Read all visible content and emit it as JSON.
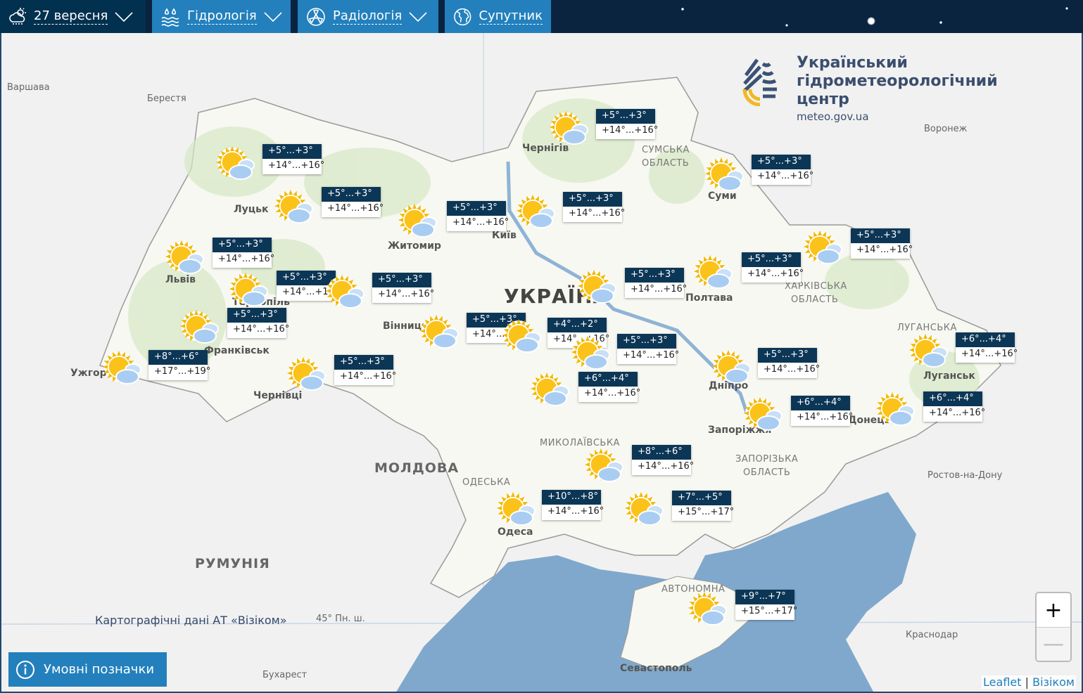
{
  "nav": {
    "tabs": [
      {
        "label": "27 вересня",
        "icon": "cloud-sun-rain-icon",
        "dropdown": true,
        "active": true
      },
      {
        "label": "Гідрологія",
        "icon": "water-drops-icon",
        "dropdown": true
      },
      {
        "label": "Радіологія",
        "icon": "radiation-icon",
        "dropdown": true
      },
      {
        "label": "Супутник",
        "icon": "globe-icon",
        "dropdown": false
      }
    ],
    "colors": {
      "active": "#02314f",
      "tab": "#2380bd",
      "bar": "#0a2440"
    }
  },
  "logo": {
    "line1": "Український",
    "line2": "гідрометеорологічний",
    "line3": "центр",
    "url": "meteo.gov.ua"
  },
  "map": {
    "places": {
      "warsaw": "Варшава",
      "brest": "Берестя",
      "voronezh": "Воронеж",
      "chernihiv": "Чернігів",
      "sumy_region": "СУМСЬКА",
      "sumy_region2": "ОБЛАСТЬ",
      "sumy": "Суми",
      "lutsk": "Луцьк",
      "zhytomyr": "Житомир",
      "kyiv": "Київ",
      "lviv": "Львів",
      "ternopil": "Тернопіль",
      "ukraine": "УКРАЇНА",
      "poltava": "Полтава",
      "kharkiv_region": "ХАРКІВСЬКА",
      "kharkiv_region2": "ОБЛАСТЬ",
      "vinnytsia": "Вінниця",
      "frankivsk": "Франківськ",
      "uzhhorod": "Ужгород",
      "chernivtsi": "Чернівці",
      "luhansk_region": "ЛУГАНСЬКА",
      "luhansk": "Луганськ",
      "dnipro": "Дніпро",
      "zaporizhzhia": "Запоріжжя",
      "donetsk": "Донецьк",
      "mykolaiv_region": "МИКОЛАЇВСЬКА",
      "moldova": "МОЛДОВА",
      "odesa_region": "ОДЕСЬКА",
      "odesa": "Одеса",
      "zaporizhzhia_region": "ЗАПОРІЗЬКА",
      "zaporizhzhia_region2": "ОБЛАСТЬ",
      "rostov": "Ростов-на-Дону",
      "romania": "РУМУНІЯ",
      "crimea": "АВТОНОМНА",
      "sevastopol": "Севастополь",
      "krasnodar": "Краснодар",
      "bucharest": "Бухарест",
      "parallel": "45° Пн. ш."
    },
    "forecasts": [
      {
        "region": "chernihiv",
        "night": "+5°...+3°",
        "day": "+14°...+16°"
      },
      {
        "region": "volyn",
        "night": "+5°...+3°",
        "day": "+14°...+16°"
      },
      {
        "region": "rivne",
        "night": "+5°...+3°",
        "day": "+14°...+16°"
      },
      {
        "region": "zhytomyr",
        "night": "+5°...+3°",
        "day": "+14°...+16°"
      },
      {
        "region": "kyiv",
        "night": "+5°...+3°",
        "day": "+14°...+16°"
      },
      {
        "region": "sumy",
        "night": "+5°...+3°",
        "day": "+14°...+16°"
      },
      {
        "region": "lviv",
        "night": "+5°...+3°",
        "day": "+14°...+16°"
      },
      {
        "region": "ternopil",
        "night": "+5°...+3°",
        "day": "+14°...+16°"
      },
      {
        "region": "khmelnytskyi",
        "night": "+5°...+3°",
        "day": "+14°...+16°"
      },
      {
        "region": "kharkiv",
        "night": "+5°...+3°",
        "day": "+14°...+16°"
      },
      {
        "region": "poltava",
        "night": "+5°...+3°",
        "day": "+14°...+16°"
      },
      {
        "region": "cherkasy",
        "night": "+5°...+3°",
        "day": "+14°...+16°"
      },
      {
        "region": "ivano-frankivsk",
        "night": "+5°...+3°",
        "day": "+14°...+16°"
      },
      {
        "region": "vinnytsia",
        "night": "+5°...+3°",
        "day": "+14°...+16°"
      },
      {
        "region": "kyiv-city",
        "night": "+4°...+2°",
        "day": "+14°...+16°"
      },
      {
        "region": "kirovohrad",
        "night": "+5°...+3°",
        "day": "+14°...+16°"
      },
      {
        "region": "zakarpattia",
        "night": "+8°...+6°",
        "day": "+17°...+19°"
      },
      {
        "region": "chernivtsi",
        "night": "+5°...+3°",
        "day": "+14°...+16°"
      },
      {
        "region": "dnipro",
        "night": "+5°...+3°",
        "day": "+14°...+16°"
      },
      {
        "region": "luhansk",
        "night": "+6°...+4°",
        "day": "+14°...+16°"
      },
      {
        "region": "kropyvnytskyi",
        "night": "+6°...+4°",
        "day": "+14°...+16°"
      },
      {
        "region": "zaporizhzhia",
        "night": "+6°...+4°",
        "day": "+14°...+16°"
      },
      {
        "region": "donetsk",
        "night": "+6°...+4°",
        "day": "+14°...+16°"
      },
      {
        "region": "mykolaiv",
        "night": "+8°...+6°",
        "day": "+14°...+16°"
      },
      {
        "region": "odesa",
        "night": "+10°...+8°",
        "day": "+14°...+16°"
      },
      {
        "region": "kherson",
        "night": "+7°...+5°",
        "day": "+15°...+17°"
      },
      {
        "region": "crimea",
        "night": "+9°...+7°",
        "day": "+15°...+17°"
      }
    ],
    "weather_icon": "sun-behind-cloud-icon",
    "credit": "Картографічні дані АТ «Візіком»",
    "legend_button": "Умовні позначки",
    "zoom_in": "+",
    "zoom_out": "—",
    "attribution": {
      "leaflet": "Leaflet",
      "sep": "|",
      "visicom": "Візіком"
    },
    "colors": {
      "sea": "#7fa8cc",
      "land": "#f7f8f3",
      "badge_top": "#0c3656"
    }
  }
}
